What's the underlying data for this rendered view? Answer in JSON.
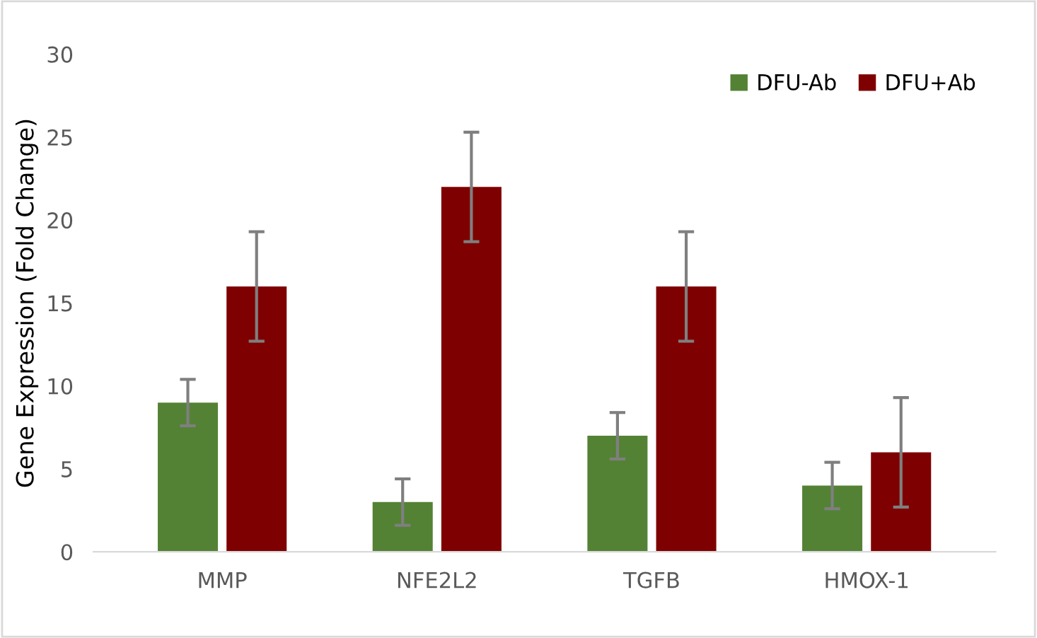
{
  "chart_data": {
    "type": "bar",
    "ylabel": "Gene Expression (Fold Change)",
    "categories": [
      "MMP",
      "NFE2L2",
      "TGFB",
      "HMOX-1"
    ],
    "series": [
      {
        "name": "DFU-Ab",
        "color": "#548235",
        "values": [
          9,
          3,
          7,
          4
        ],
        "errors": [
          1.4,
          1.4,
          1.4,
          1.4
        ]
      },
      {
        "name": "DFU+Ab",
        "color": "#7f0000",
        "values": [
          16,
          22,
          16,
          6
        ],
        "errors": [
          3.3,
          3.3,
          3.3,
          3.3
        ]
      }
    ],
    "ylim": [
      0,
      30
    ],
    "yticks": [
      0,
      5,
      10,
      15,
      20,
      25,
      30
    ],
    "grid": false,
    "legend": "top right"
  }
}
